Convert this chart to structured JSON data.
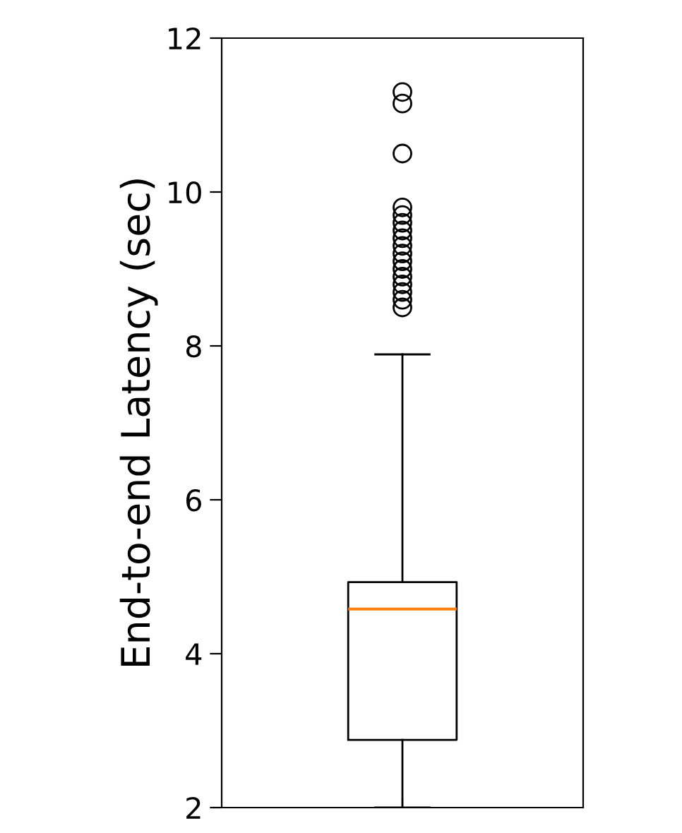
{
  "chart_data": {
    "type": "box",
    "ylabel": "End-to-end Latency (sec)",
    "categories": [
      null
    ],
    "boxes": [
      {
        "low": 2,
        "q1": 2.88,
        "median": 4.58,
        "q3": 4.93,
        "high": 7.89,
        "outliers": [
          11.3,
          11.15,
          10.5,
          9.8,
          9.7,
          9.6,
          9.5,
          9.4,
          9.3,
          9.2,
          9.1,
          9.0,
          8.9,
          8.8,
          8.7,
          8.6,
          8.5
        ]
      }
    ],
    "ylim": [
      2,
      12
    ],
    "yticks": [
      2,
      4,
      6,
      8,
      10,
      12
    ],
    "grid": false,
    "legend": false
  }
}
